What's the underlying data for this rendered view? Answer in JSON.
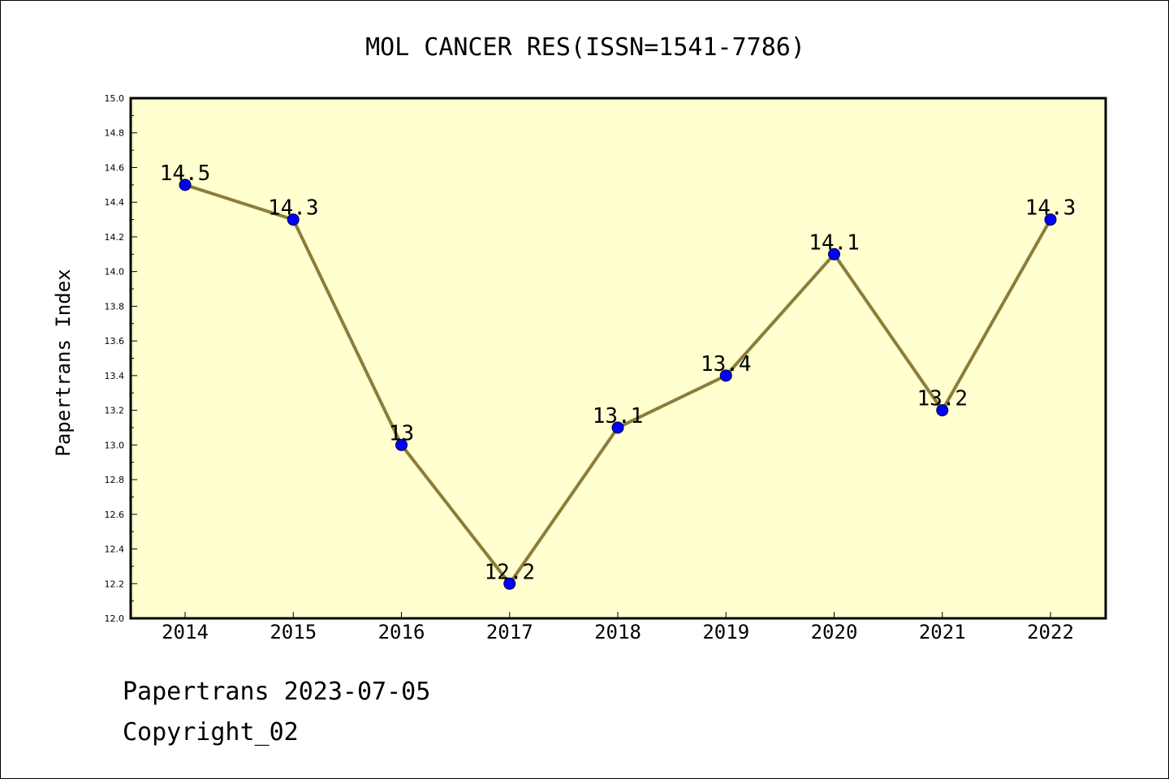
{
  "chart_data": {
    "type": "line",
    "title": "MOL CANCER RES(ISSN=1541-7786)",
    "xlabel": "",
    "ylabel": "Papertrans Index",
    "categories": [
      "2014",
      "2015",
      "2016",
      "2017",
      "2018",
      "2019",
      "2020",
      "2021",
      "2022"
    ],
    "series": [
      {
        "values": [
          14.5,
          14.3,
          13.0,
          12.2,
          13.1,
          13.4,
          14.1,
          13.2,
          14.3
        ],
        "labels": [
          "14.5",
          "14.3",
          "13",
          "12.2",
          "13.1",
          "13.4",
          "14.1",
          "13.2",
          "14.3"
        ]
      }
    ],
    "ylim": [
      12.0,
      15.0
    ],
    "yticks": [
      "12.0",
      "12.2",
      "12.4",
      "12.6",
      "12.8",
      "13.0",
      "13.2",
      "13.4",
      "13.6",
      "13.8",
      "14.0",
      "14.2",
      "14.4",
      "14.6",
      "14.8",
      "15.0"
    ],
    "grid": false,
    "legend": "none",
    "colors": {
      "plot_background": "#ffffd0",
      "line": "#8b7d3a",
      "marker": "#0000ff"
    }
  },
  "footer": {
    "date_text": "Papertrans 2023-07-05",
    "copyright_text": "Copyright_02"
  }
}
